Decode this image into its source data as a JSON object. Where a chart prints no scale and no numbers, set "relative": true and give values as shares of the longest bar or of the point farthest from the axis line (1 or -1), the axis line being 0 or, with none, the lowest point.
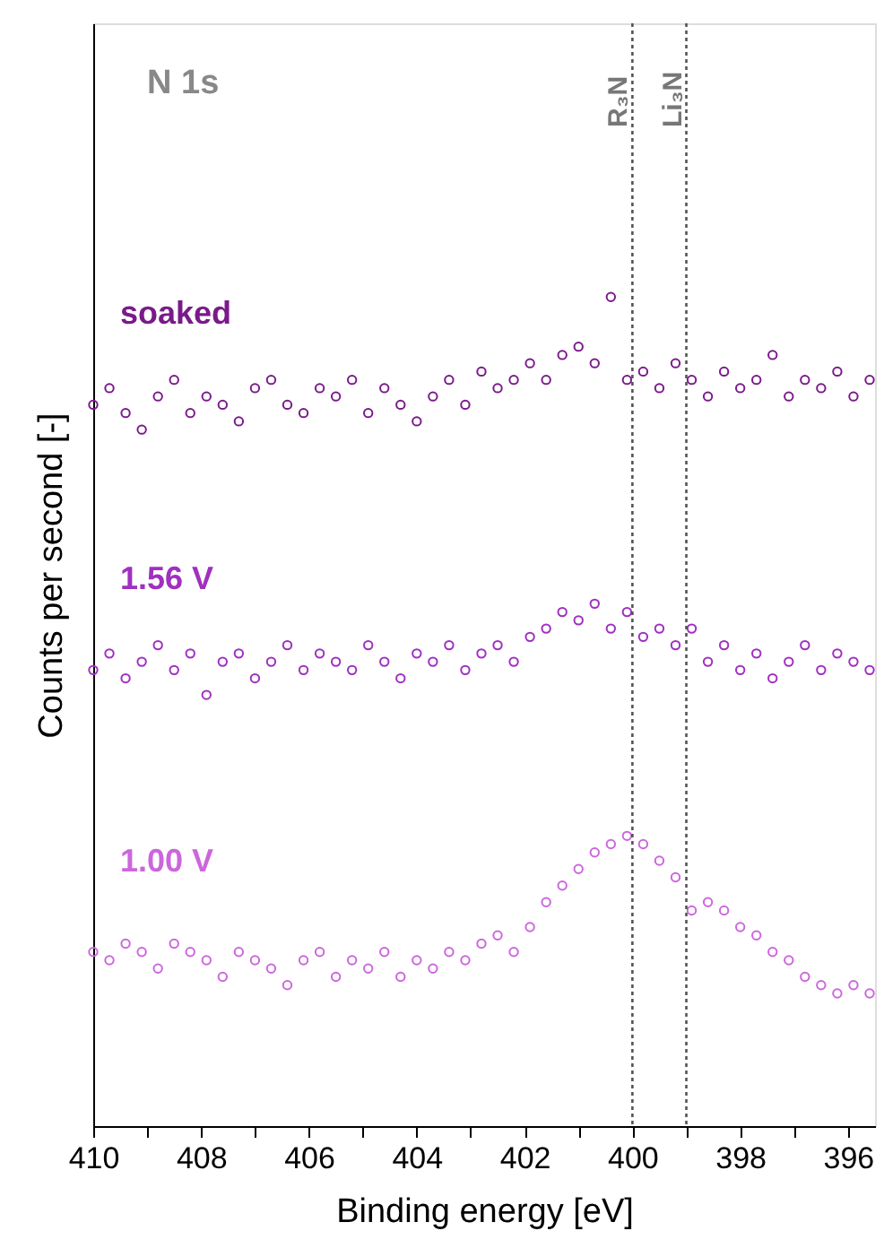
{
  "chart_data": {
    "type": "scatter",
    "xlabel": "Binding energy [eV]",
    "ylabel": "Counts per second [-]",
    "relative": true,
    "grid": false,
    "legend": false,
    "marker": "circle",
    "xlim": [
      410,
      395.5
    ],
    "xticks": [
      410,
      {
        "value": 409,
        "label": null
      },
      408,
      {
        "value": 407,
        "label": null
      },
      406,
      {
        "value": 405,
        "label": null
      },
      404,
      {
        "value": 403,
        "label": null
      },
      402,
      {
        "value": 401,
        "label": null
      },
      400,
      {
        "value": 399,
        "label": null
      },
      398,
      {
        "value": 397,
        "label": null
      },
      396
    ],
    "x": [
      410,
      409.7,
      409.4,
      409.1,
      408.8,
      408.5,
      408.2,
      407.9,
      407.6,
      407.3,
      407,
      406.7,
      406.4,
      406.1,
      405.8,
      405.5,
      405.2,
      404.9,
      404.6,
      404.3,
      404,
      403.7,
      403.4,
      403.1,
      402.8,
      402.5,
      402.2,
      401.9,
      401.6,
      401.3,
      401,
      400.7,
      400.4,
      400.1,
      399.8,
      399.5,
      399.2,
      398.9,
      398.6,
      398.3,
      398,
      397.7,
      397.4,
      397.1,
      396.8,
      396.5,
      396.2,
      395.9,
      395.6
    ],
    "series": [
      {
        "name": "soaked",
        "color": "#7a1a8a",
        "values": [
          0.87,
          0.89,
          0.86,
          0.84,
          0.88,
          0.9,
          0.86,
          0.88,
          0.87,
          0.85,
          0.89,
          0.9,
          0.87,
          0.86,
          0.89,
          0.88,
          0.9,
          0.86,
          0.89,
          0.87,
          0.85,
          0.88,
          0.9,
          0.87,
          0.91,
          0.89,
          0.9,
          0.92,
          0.9,
          0.93,
          0.94,
          0.92,
          1,
          0.9,
          0.91,
          0.89,
          0.92,
          0.9,
          0.88,
          0.91,
          0.89,
          0.9,
          0.93,
          0.88,
          0.9,
          0.89,
          0.91,
          0.88,
          0.9
        ]
      },
      {
        "name": "1.56 V",
        "color": "#a030c0",
        "values": [
          0.55,
          0.57,
          0.54,
          0.56,
          0.58,
          0.55,
          0.57,
          0.52,
          0.56,
          0.57,
          0.54,
          0.56,
          0.58,
          0.55,
          0.57,
          0.56,
          0.55,
          0.58,
          0.56,
          0.54,
          0.57,
          0.56,
          0.58,
          0.55,
          0.57,
          0.58,
          0.56,
          0.59,
          0.6,
          0.62,
          0.61,
          0.63,
          0.6,
          0.62,
          0.59,
          0.6,
          0.58,
          0.6,
          0.56,
          0.58,
          0.55,
          0.57,
          0.54,
          0.56,
          0.58,
          0.55,
          0.57,
          0.56,
          0.55
        ]
      },
      {
        "name": "1.00 V",
        "color": "#cc66dd",
        "values": [
          0.21,
          0.2,
          0.22,
          0.21,
          0.19,
          0.22,
          0.21,
          0.2,
          0.18,
          0.21,
          0.2,
          0.19,
          0.17,
          0.2,
          0.21,
          0.18,
          0.2,
          0.19,
          0.21,
          0.18,
          0.2,
          0.19,
          0.21,
          0.2,
          0.22,
          0.23,
          0.21,
          0.24,
          0.27,
          0.29,
          0.31,
          0.33,
          0.34,
          0.35,
          0.34,
          0.32,
          0.3,
          0.26,
          0.27,
          0.26,
          0.24,
          0.23,
          0.21,
          0.2,
          0.18,
          0.17,
          0.16,
          0.17,
          0.16
        ]
      }
    ],
    "ref_lines": [
      {
        "axis": "x",
        "value": 400,
        "label": "R₃N",
        "color": "#555555",
        "line_style": "dotted"
      },
      {
        "axis": "x",
        "value": 399,
        "label": "Li₃N",
        "color": "#555555",
        "line_style": "dotted"
      }
    ],
    "annotations": [
      "N 1s"
    ]
  }
}
